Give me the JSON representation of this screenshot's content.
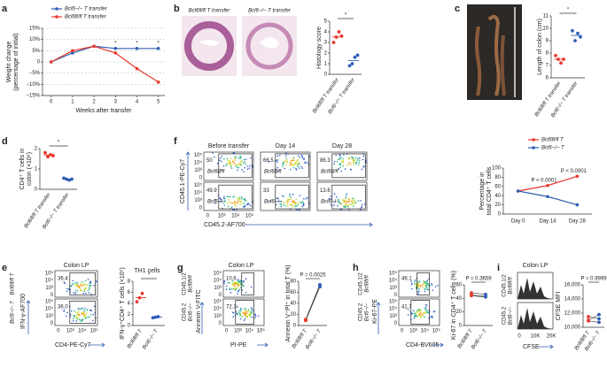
{
  "figure": {
    "letters": [
      "a",
      "b",
      "c",
      "d",
      "e",
      "f",
      "g",
      "h",
      "i"
    ],
    "b_images": [
      "Bcl6fl/fl T transfer",
      "Bcl6−/− T transfer"
    ],
    "flow_ticks_y": [
      "10⁵",
      "10⁴",
      "10³",
      "0"
    ],
    "flow_ticks_x": [
      "0",
      "10³",
      "10⁴",
      "10⁵"
    ],
    "f": {
      "columns": [
        "Before transfer",
        "Day 14",
        "Day 28"
      ],
      "rows": [
        "Bcl6fl/fl",
        "Bcl6−/−"
      ],
      "gates": [
        "50",
        "49.9",
        "66.5",
        "33",
        "86.3",
        "13.6"
      ],
      "y_axis": "CD45.1-PE-Cy7",
      "x_axis": "CD45.2-AF700"
    },
    "e": {
      "title": "Colon LP",
      "rows": [
        "Bcl6fl/fl T",
        "Bcl6−/− T"
      ],
      "gates": [
        "36.4",
        "36.0"
      ],
      "y_axis": "IFN-γ-AF700",
      "x_axis": "CD4-PE-Cy7"
    },
    "g": {
      "title": "Colon LP",
      "rows": [
        [
          "CD45.1/2",
          "Bcl6fl/fl"
        ],
        [
          "CD45.2",
          "Bcl6−/−"
        ]
      ],
      "gates": [
        "10.6",
        "72.3"
      ],
      "y_axis": "Annexin V-FITC",
      "x_axis": "PI-PE"
    },
    "h": {
      "rows": [
        [
          "CD45.1/2",
          "Bcl6fl/fl"
        ],
        [
          "CD45.2",
          "Bcl6−/−"
        ]
      ],
      "gates": [
        "46.1",
        "41.7"
      ],
      "y_axis": "Ki-67-PE",
      "x_axis": "CD4-BV605"
    },
    "i": {
      "title": "Colon LP",
      "rows": [
        [
          "CD45.1/2",
          "Bcl6fl/fl"
        ],
        [
          "CD45.2",
          "Bcl6−/−"
        ]
      ],
      "x_ticks": [
        "0",
        "10K",
        "20K"
      ],
      "x_axis": "CFSE"
    }
  },
  "chart_data": [
    {
      "type": "line",
      "x": [
        0,
        1,
        2,
        3,
        4,
        5
      ],
      "xlim": [
        -0.4,
        5.3
      ],
      "xticks": [
        0,
        1,
        2,
        3,
        4,
        5
      ],
      "x_label": "Weeks after transfer",
      "y_label": [
        "Weight change",
        "(percentage of initial)"
      ],
      "ylim": [
        -15,
        15
      ],
      "yticks": [
        {
          "value": 15,
          "label": "15%"
        },
        {
          "value": 10,
          "label": "10%"
        },
        {
          "value": 5,
          "label": "5%"
        },
        0,
        {
          "value": -5,
          "label": "−5%"
        },
        {
          "value": -10,
          "label": "−10%"
        },
        {
          "value": -15,
          "label": "−15%"
        }
      ],
      "grid": true,
      "series": [
        {
          "name": "Bcl6−/− T transfer",
          "color": "#2f5fb5",
          "values": [
            0,
            4,
            7,
            6,
            6,
            6
          ]
        },
        {
          "name": "Bcl6fl/fl T transfer",
          "color": "#e8382c",
          "values": [
            0,
            5,
            7,
            4,
            -3,
            -9
          ]
        }
      ],
      "annotations": [
        "*",
        "*",
        "*"
      ]
    },
    {
      "type": "strip",
      "categories": [
        "Bcl6fl/fl T transfer",
        "Bcl6−/− T transfer"
      ],
      "colors": [
        "#e8382c",
        "#2f5fb5"
      ],
      "y_label": "Histology score",
      "ylim": [
        0,
        5
      ],
      "yticks": [
        0,
        1,
        2,
        3,
        4,
        5
      ],
      "values": [
        [
          3.5,
          4,
          3,
          3.6
        ],
        [
          1,
          1.6,
          0.8,
          1.8
        ]
      ],
      "annotation": "*"
    },
    {
      "type": "strip",
      "categories": [
        "Bcl6fl/fl T transfer",
        "Bcl6−/− T transfer"
      ],
      "colors": [
        "#e8382c",
        "#2f5fb5"
      ],
      "y_label": "Length of colon (cm)",
      "ylim": [
        6,
        11
      ],
      "yticks": [
        6,
        7,
        8,
        9,
        10,
        11
      ],
      "values": [
        [
          7.5,
          7.2,
          7.8,
          7.5
        ],
        [
          9,
          9.6,
          9.8,
          9.3
        ]
      ],
      "annotation": "*"
    },
    {
      "type": "strip",
      "categories": [
        "Bcl6fl/fl T transfer",
        "Bcl6−/− T transfer"
      ],
      "colors": [
        "#e8382c",
        "#2f5fb5"
      ],
      "y_label": [
        "CD4⁺ T cells in",
        "colon (×10⁶)"
      ],
      "ylim": [
        0,
        2
      ],
      "yticks": [
        0,
        1,
        2
      ],
      "values": [
        [
          1.6,
          1.7,
          1.8,
          1.65
        ],
        [
          0.5,
          0.45,
          0.55,
          0.5
        ]
      ],
      "annotation": "*"
    },
    {
      "type": "line",
      "categories": [
        "Day 0",
        "Day 14",
        "Day 28"
      ],
      "y_label": [
        "Percentage in",
        "total CD4⁺ T cells"
      ],
      "ylim": [
        0,
        100
      ],
      "yticks": [
        0,
        20,
        40,
        60,
        80,
        100
      ],
      "series": [
        {
          "name": "Bcl6fl/fl T",
          "color": "#e8382c",
          "values": [
            50,
            62,
            82
          ]
        },
        {
          "name": "Bcl6−/− T",
          "color": "#2f5fb5",
          "values": [
            50,
            38,
            20
          ]
        }
      ],
      "annotations": [
        "P < 0.0001",
        "P < 0.0001"
      ]
    },
    {
      "type": "strip",
      "title": "TH1 cells",
      "categories": [
        "Bcl6fl/fl T",
        "Bcl6−/− T"
      ],
      "colors": [
        "#e8382c",
        "#2f5fb5"
      ],
      "y_label": "IFN-γ⁺CD4⁺ T cells (×10⁵)",
      "ylim": [
        0,
        8
      ],
      "yticks": [
        0,
        2,
        4,
        6,
        8
      ],
      "values": [
        [
          5,
          5.8,
          4.3
        ],
        [
          1.5,
          1.6,
          1.4
        ]
      ],
      "annotation": "*"
    },
    {
      "type": "strip",
      "paired": true,
      "categories": [
        "Bcl6fl/fl T",
        "Bcl6−/− T"
      ],
      "colors": [
        "#e8382c",
        "#2f5fb5"
      ],
      "y_label": "Annexin V⁺PI⁺ in total T (%)",
      "ylim": [
        0,
        80
      ],
      "yticks": [
        0,
        20,
        40,
        60,
        80
      ],
      "values": [
        [
          10,
          11,
          9
        ],
        [
          72,
          74,
          70
        ]
      ],
      "annotation": "P = 0.0025"
    },
    {
      "type": "strip",
      "paired": true,
      "categories": [
        "Bcl6fl/fl T",
        "Bcl6−/− T"
      ],
      "colors": [
        "#e8382c",
        "#2f5fb5"
      ],
      "y_label": "Ki-67 in CD4⁺ T cells (%)",
      "ylim": [
        0,
        60
      ],
      "yticks": [
        0,
        20,
        40,
        60
      ],
      "values": [
        [
          45,
          48,
          44
        ],
        [
          43,
          46,
          42
        ]
      ],
      "annotation": "P = 0.3659"
    },
    {
      "type": "strip",
      "paired": true,
      "categories": [
        "Bcl6fl/fl T",
        "Bcl6−/− T"
      ],
      "colors": [
        "#e8382c",
        "#2f5fb5"
      ],
      "y_label": "CFSE MFI",
      "ylim": [
        10000,
        16000
      ],
      "yticks": [
        {
          "value": 10000,
          "label": "10,000"
        },
        {
          "value": 12000,
          "label": "12,000"
        },
        {
          "value": 14000,
          "label": "14,000"
        },
        {
          "value": 16000,
          "label": "16,000"
        }
      ],
      "values": [
        [
          11500,
          11000,
          10900
        ],
        [
          11200,
          11800,
          10700
        ]
      ],
      "annotation": "P = 0.9999"
    }
  ]
}
